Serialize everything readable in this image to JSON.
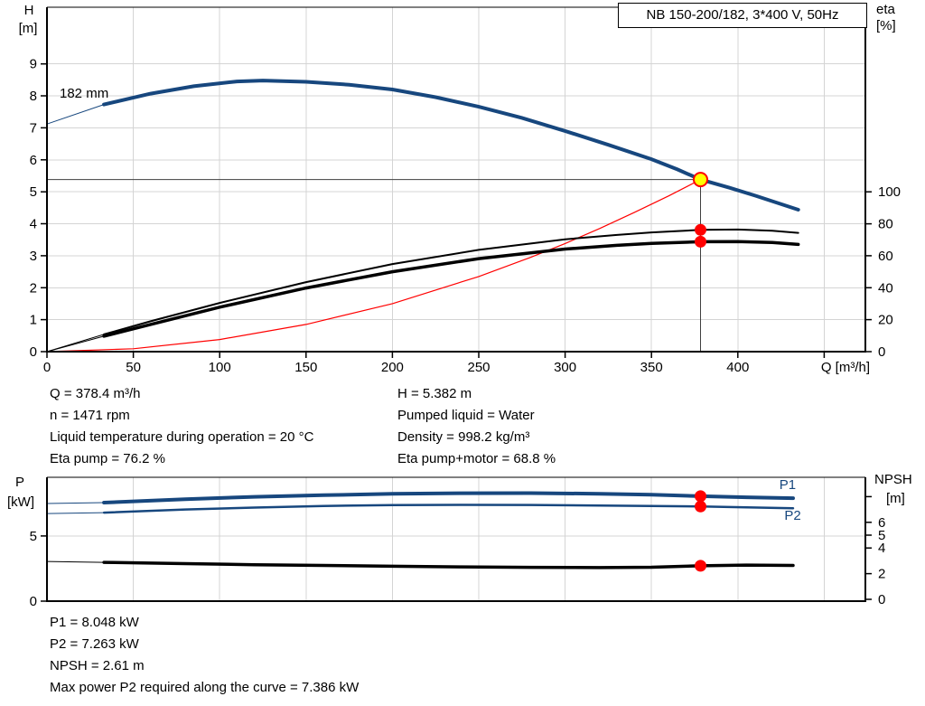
{
  "title_box": {
    "label": "NB 150-200/182, 3*400 V, 50Hz"
  },
  "axis_labels": {
    "top_left_line1": "H",
    "top_left_line2": "[m]",
    "top_right_line1": "eta",
    "top_right_line2": "[%]",
    "x_title": "Q [m³/h]",
    "bottom_left_line1": "P",
    "bottom_left_line2": "[kW]",
    "bottom_right_line1": "NPSH",
    "bottom_right_line2": "[m]"
  },
  "info_top_left": [
    "Q = 378.4 m³/h",
    "n = 1471 rpm",
    "Liquid temperature during operation = 20 °C",
    "Eta pump = 76.2 %"
  ],
  "info_top_right": [
    "H = 5.382 m",
    "Pumped liquid = Water",
    "Density = 998.2 kg/m³",
    "Eta pump+motor = 68.8 %"
  ],
  "info_bottom": [
    "P1 = 8.048 kW",
    "P2 = 7.263 kW",
    "NPSH = 2.61 m",
    "Max power P2 required along the curve = 7.386 kW"
  ],
  "colors": {
    "curve_blue": "#17477E",
    "red": "#FF0000",
    "yellow": "#FFFF00",
    "grid": "#D4D4D4",
    "crosshair": "#3F3F3F",
    "axis": "#000000",
    "text": "#000000"
  },
  "chart_data": [
    {
      "name": "hq-eta-chart",
      "type": "line",
      "title": "NB 150-200/182, 3*400 V, 50Hz",
      "x_axis": {
        "label": "Q [m³/h]",
        "min": 0,
        "max": 474,
        "gridlines": [
          50,
          100,
          150,
          200,
          250,
          300,
          350,
          400,
          450
        ],
        "ticks": [
          {
            "v": 0,
            "label": "0"
          },
          {
            "v": 50,
            "label": "50"
          },
          {
            "v": 100,
            "label": "100"
          },
          {
            "v": 150,
            "label": "150"
          },
          {
            "v": 200,
            "label": "200"
          },
          {
            "v": 250,
            "label": "250"
          },
          {
            "v": 300,
            "label": "300"
          },
          {
            "v": 350,
            "label": "350"
          },
          {
            "v": 400,
            "label": "400"
          },
          {
            "v": 450,
            "label": ""
          }
        ]
      },
      "y_left": {
        "label": "H [m]",
        "min": 0,
        "max": 10.8,
        "ticks": [
          {
            "v": 0,
            "label": "0"
          },
          {
            "v": 1,
            "label": "1"
          },
          {
            "v": 2,
            "label": "2"
          },
          {
            "v": 3,
            "label": "3"
          },
          {
            "v": 4,
            "label": "4"
          },
          {
            "v": 5,
            "label": "5"
          },
          {
            "v": 6,
            "label": "6"
          },
          {
            "v": 7,
            "label": "7"
          },
          {
            "v": 8,
            "label": "8"
          },
          {
            "v": 9,
            "label": "9"
          }
        ]
      },
      "y_right": {
        "label": "eta [%]",
        "min": 0,
        "max": 215,
        "ticks": [
          {
            "v": 0,
            "label": "0"
          },
          {
            "v": 20,
            "label": "20"
          },
          {
            "v": 40,
            "label": "40"
          },
          {
            "v": 60,
            "label": "60"
          },
          {
            "v": 80,
            "label": "80"
          },
          {
            "v": 100,
            "label": "100"
          }
        ]
      },
      "grid_h": [
        {
          "axis": "H",
          "v": 1
        },
        {
          "axis": "H",
          "v": 2
        },
        {
          "axis": "H",
          "v": 3
        },
        {
          "axis": "H",
          "v": 4
        },
        {
          "axis": "H",
          "v": 5
        },
        {
          "axis": "H",
          "v": 6
        },
        {
          "axis": "H",
          "v": 7
        },
        {
          "axis": "H",
          "v": 8
        },
        {
          "axis": "H",
          "v": 9
        }
      ],
      "operating_point": {
        "Q": 378.4,
        "H": 5.382,
        "eta_pump": 76.2,
        "eta_pump_motor": 68.8
      },
      "series": [
        {
          "name": "pump-curve-lead",
          "axis": "H",
          "color": "#17477E",
          "width": 1,
          "points": [
            [
              0,
              7.12
            ],
            [
              33,
              7.73
            ]
          ]
        },
        {
          "name": "system-curve",
          "axis": "H",
          "color": "#FF0000",
          "width": 1.2,
          "points": [
            [
              0,
              0
            ],
            [
              50,
              0.09
            ],
            [
              100,
              0.38
            ],
            [
              150,
              0.85
            ],
            [
              200,
              1.5
            ],
            [
              250,
              2.35
            ],
            [
              280,
              2.95
            ],
            [
              300,
              3.38
            ],
            [
              320,
              3.85
            ],
            [
              340,
              4.35
            ],
            [
              360,
              4.87
            ],
            [
              378.4,
              5.382
            ]
          ]
        },
        {
          "name": "eta-pump-curve-lead",
          "axis": "eta",
          "color": "#000000",
          "width": 1,
          "points": [
            [
              0,
              0
            ],
            [
              33,
              10.8
            ]
          ]
        },
        {
          "name": "eta-pump-curve",
          "axis": "eta",
          "color": "#000000",
          "width": 2,
          "points": [
            [
              33,
              10.8
            ],
            [
              60,
              19
            ],
            [
              100,
              30.5
            ],
            [
              150,
              43.5
            ],
            [
              200,
              54.8
            ],
            [
              250,
              63.7
            ],
            [
              300,
              70.3
            ],
            [
              330,
              73
            ],
            [
              350,
              74.6
            ],
            [
              378.4,
              76.2
            ],
            [
              400,
              76.4
            ],
            [
              420,
              75.7
            ],
            [
              435,
              74.3
            ]
          ]
        },
        {
          "name": "eta-pump-motor-curve-lead",
          "axis": "eta",
          "color": "#000000",
          "width": 1,
          "points": [
            [
              0,
              0
            ],
            [
              33,
              9.7
            ]
          ]
        },
        {
          "name": "eta-pump-motor-curve",
          "axis": "eta",
          "color": "#000000",
          "width": 3.5,
          "points": [
            [
              33,
              9.7
            ],
            [
              60,
              17
            ],
            [
              100,
              27.8
            ],
            [
              150,
              39.8
            ],
            [
              200,
              50
            ],
            [
              250,
              58.2
            ],
            [
              300,
              64.2
            ],
            [
              330,
              66.5
            ],
            [
              350,
              67.7
            ],
            [
              378.4,
              68.8
            ],
            [
              400,
              68.9
            ],
            [
              420,
              68.3
            ],
            [
              435,
              67.1
            ]
          ]
        },
        {
          "name": "pump-curve-182mm",
          "axis": "H",
          "color": "#17477E",
          "width": 4,
          "points": [
            [
              33,
              7.73
            ],
            [
              60,
              8.07
            ],
            [
              85,
              8.3
            ],
            [
              110,
              8.45
            ],
            [
              125,
              8.48
            ],
            [
              150,
              8.44
            ],
            [
              175,
              8.35
            ],
            [
              200,
              8.2
            ],
            [
              225,
              7.96
            ],
            [
              250,
              7.66
            ],
            [
              275,
              7.31
            ],
            [
              300,
              6.9
            ],
            [
              325,
              6.47
            ],
            [
              350,
              6.02
            ],
            [
              365,
              5.7
            ],
            [
              378.4,
              5.382
            ],
            [
              395,
              5.13
            ],
            [
              410,
              4.88
            ],
            [
              435,
              4.44
            ]
          ]
        }
      ],
      "markers": [
        {
          "name": "eta-pump-duty-dot",
          "Q": 378.4,
          "axis": "eta",
          "v": 76.2,
          "r": 6.5,
          "fill": "#FF0000"
        },
        {
          "name": "eta-pump-motor-duty-dot",
          "Q": 378.4,
          "axis": "eta",
          "v": 68.8,
          "r": 6.5,
          "fill": "#FF0000"
        },
        {
          "name": "duty-point",
          "Q": 378.4,
          "axis": "H",
          "v": 5.382,
          "r": 7.5,
          "fill": "#FFFF00",
          "stroke": "#FF0000",
          "sw": 2
        }
      ],
      "annotations": [
        {
          "text": "182 mm",
          "Q": 7.3,
          "axis": "H",
          "v": 7.95,
          "color": "#000000"
        }
      ]
    },
    {
      "name": "power-npsh-chart",
      "type": "line",
      "title": "",
      "x_axis": {
        "label": "",
        "min": 0,
        "max": 474,
        "gridlines": [
          50,
          100,
          150,
          200,
          250,
          300,
          350,
          400,
          450
        ],
        "ticks": []
      },
      "y_left": {
        "label": "P [kW]",
        "min": 0,
        "max": 9.5,
        "ticks": [
          {
            "v": 0,
            "label": "0"
          },
          {
            "v": 5,
            "label": "5"
          }
        ]
      },
      "y_right": {
        "label": "NPSH [m]",
        "min": 0,
        "max": 9.5,
        "ticks": [
          {
            "v": 0,
            "label": "0"
          },
          {
            "v": 2,
            "label": "2"
          },
          {
            "v": 4,
            "label": "4"
          },
          {
            "v": 5,
            "label": "5"
          },
          {
            "v": 6,
            "label": "6"
          },
          {
            "v": 8,
            "label": ""
          }
        ]
      },
      "grid_h": [
        {
          "axis": "P",
          "v": 5
        }
      ],
      "operating_point": {
        "Q": 378.4,
        "P1": 8.048,
        "P2": 7.263,
        "NPSH": 2.61
      },
      "series": [
        {
          "name": "p1-curve-lead",
          "axis": "P",
          "color": "#17477E",
          "width": 1,
          "points": [
            [
              0,
              7.49
            ],
            [
              33,
              7.56
            ]
          ]
        },
        {
          "name": "p1-curve",
          "axis": "P",
          "color": "#17477E",
          "width": 4,
          "points": [
            [
              33,
              7.56
            ],
            [
              80,
              7.82
            ],
            [
              120,
              8.0
            ],
            [
              160,
              8.13
            ],
            [
              200,
              8.23
            ],
            [
              240,
              8.28
            ],
            [
              280,
              8.29
            ],
            [
              320,
              8.24
            ],
            [
              350,
              8.16
            ],
            [
              378.4,
              8.048
            ],
            [
              405,
              7.97
            ],
            [
              432,
              7.9
            ]
          ]
        },
        {
          "name": "p2-curve-lead",
          "axis": "P",
          "color": "#17477E",
          "width": 1,
          "points": [
            [
              0,
              6.72
            ],
            [
              33,
              6.79
            ]
          ]
        },
        {
          "name": "p2-curve",
          "axis": "P",
          "color": "#17477E",
          "width": 2.5,
          "points": [
            [
              33,
              6.79
            ],
            [
              80,
              7.03
            ],
            [
              120,
              7.18
            ],
            [
              160,
              7.3
            ],
            [
              200,
              7.37
            ],
            [
              240,
              7.386
            ],
            [
              280,
              7.38
            ],
            [
              320,
              7.33
            ],
            [
              350,
              7.3
            ],
            [
              378.4,
              7.263
            ],
            [
              405,
              7.2
            ],
            [
              432,
              7.13
            ]
          ]
        },
        {
          "name": "npsh-curve-lead",
          "axis": "NPSH",
          "color": "#000000",
          "width": 1,
          "points": [
            [
              0,
              2.95
            ],
            [
              33,
              2.88
            ]
          ]
        },
        {
          "name": "npsh-curve",
          "axis": "NPSH",
          "color": "#000000",
          "width": 3.5,
          "points": [
            [
              33,
              2.88
            ],
            [
              80,
              2.78
            ],
            [
              120,
              2.7
            ],
            [
              160,
              2.64
            ],
            [
              200,
              2.58
            ],
            [
              240,
              2.53
            ],
            [
              280,
              2.49
            ],
            [
              320,
              2.47
            ],
            [
              350,
              2.5
            ],
            [
              378.4,
              2.61
            ],
            [
              405,
              2.67
            ],
            [
              432,
              2.64
            ]
          ]
        }
      ],
      "markers": [
        {
          "name": "p1-duty-dot",
          "Q": 378.4,
          "axis": "P",
          "v": 8.048,
          "r": 6.5,
          "fill": "#FF0000"
        },
        {
          "name": "p2-duty-dot",
          "Q": 378.4,
          "axis": "P",
          "v": 7.263,
          "r": 6.5,
          "fill": "#FF0000"
        },
        {
          "name": "npsh-duty-dot",
          "Q": 378.4,
          "axis": "NPSH",
          "v": 2.61,
          "r": 6.5,
          "fill": "#FF0000"
        }
      ],
      "annotations": [
        {
          "text": "P1",
          "Q": 424,
          "axis": "P",
          "v": 8.6,
          "color": "#17477E"
        },
        {
          "text": "P2",
          "Q": 427,
          "axis": "P",
          "v": 6.24,
          "color": "#17477E"
        }
      ]
    }
  ]
}
